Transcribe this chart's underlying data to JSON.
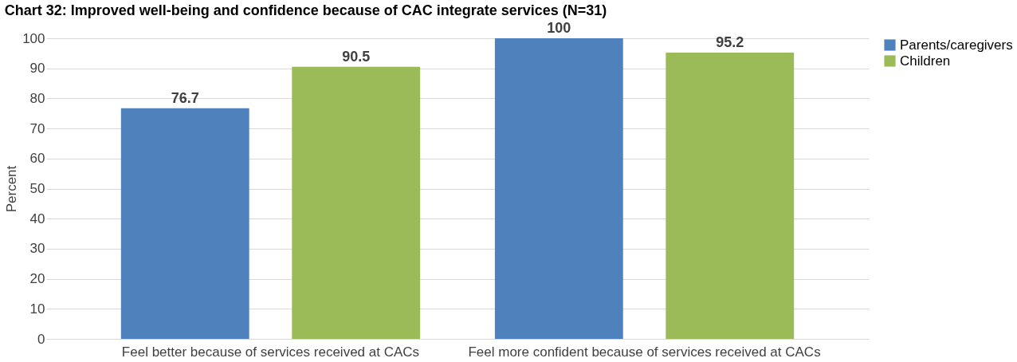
{
  "chart_data": {
    "type": "bar",
    "title": "Chart 32: Improved well-being and confidence because of CAC integrate services (N=31)",
    "ylabel": "Percent",
    "categories": [
      "Feel better because of services received at CACs",
      "Feel more confident because of services received at CACs"
    ],
    "series": [
      {
        "name": "Parents/caregivers",
        "color": "#4f81bd",
        "values": [
          76.7,
          100
        ]
      },
      {
        "name": "Children",
        "color": "#9bbb59",
        "values": [
          90.5,
          95.2
        ]
      }
    ],
    "ylim": [
      0,
      100
    ],
    "yticks": [
      0,
      10,
      20,
      30,
      40,
      50,
      60,
      70,
      80,
      90,
      100
    ],
    "grid": "y",
    "legend": "right",
    "data_labels": true
  }
}
